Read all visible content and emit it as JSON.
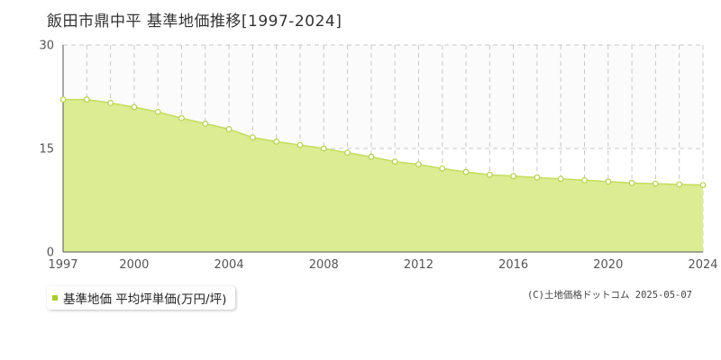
{
  "chart_data": {
    "type": "area",
    "title": "飯田市鼎中平  基準地価推移[1997-2024]",
    "x": [
      1997,
      1998,
      1999,
      2000,
      2001,
      2002,
      2003,
      2004,
      2005,
      2006,
      2007,
      2008,
      2009,
      2010,
      2011,
      2012,
      2013,
      2014,
      2015,
      2016,
      2017,
      2018,
      2019,
      2020,
      2021,
      2022,
      2023,
      2024
    ],
    "series": [
      {
        "name": "基準地価 平均坪単価(万円/坪)",
        "values": [
          22.1,
          22.1,
          21.6,
          21.0,
          20.3,
          19.4,
          18.6,
          17.8,
          16.6,
          16.0,
          15.5,
          15.0,
          14.4,
          13.8,
          13.1,
          12.7,
          12.1,
          11.6,
          11.2,
          11.0,
          10.8,
          10.6,
          10.4,
          10.2,
          10.0,
          9.9,
          9.8,
          9.7
        ]
      }
    ],
    "xticks": [
      "1997",
      "2000",
      "2004",
      "2008",
      "2012",
      "2016",
      "2020",
      "2024"
    ],
    "yticks": [
      "0",
      "15",
      "30"
    ],
    "xlim": [
      1997,
      2024
    ],
    "ylim": [
      0,
      30
    ],
    "grid": true,
    "legend_position": "bottom-left"
  },
  "colors": {
    "area_fill": "#dcec93",
    "line": "#c3dc5c",
    "marker_fill": "#ffffff",
    "marker_stroke": "#b5d14a",
    "legend_swatch": "#a6cc2e",
    "grid": "#c8c8c8",
    "axis": "#555555"
  },
  "copyright": "(C)土地価格ドットコム 2025-05-07"
}
